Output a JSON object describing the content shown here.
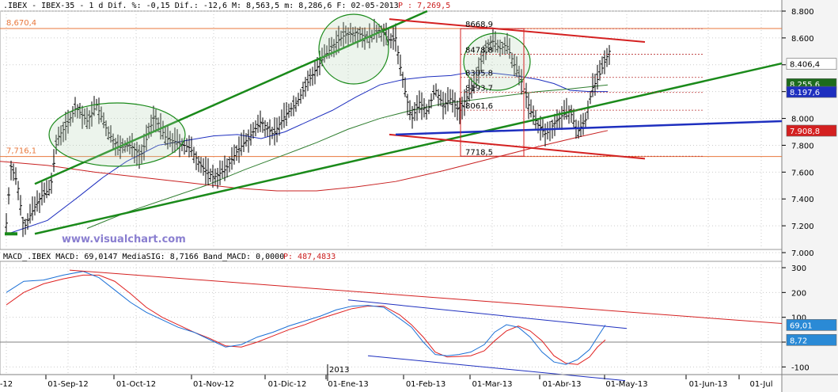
{
  "chart_data": [
    {
      "type": "ohlc",
      "header": {
        "label": ".IBEX - IBEX-35 - 1 d Dif. %: -0,15 Dif.: -12,6 M: 8,563,5 m: 8,286,6 F: 02-05-2013",
        "p_label": "P : 7,269,5"
      },
      "watermark": "www.visualchart.com",
      "y_axis": {
        "min": 7000,
        "max": 8800,
        "ticks": [
          "8.800",
          "8.600",
          "8.400",
          "8.200",
          "8.000",
          "7.800",
          "7.600",
          "7.400",
          "7.200",
          "7.000"
        ]
      },
      "x_axis": {
        "ticks": [
          "-12",
          "01-Sep-12",
          "01-Oct-12",
          "01-Nov-12",
          "01-Dic-12",
          "01-Ene-13",
          "01-Feb-13",
          "01-Mar-13",
          "01-Abr-13",
          "01-May-13",
          "01-Jun-13",
          "01-Jul"
        ],
        "year_marker": "2013"
      },
      "horizontal_levels": [
        {
          "label": "8,670,4",
          "value": 8670.4,
          "color": "#e8773b"
        },
        {
          "label": "7,716,1",
          "value": 7716.1,
          "color": "#e8773b"
        }
      ],
      "level_labels": [
        {
          "label": "8668,9",
          "value": 8668.9
        },
        {
          "label": "8478,8",
          "value": 8478.8
        },
        {
          "label": "8305,8",
          "value": 8305.8
        },
        {
          "label": "8193,7",
          "value": 8193.7
        },
        {
          "label": "8061,6",
          "value": 8061.6
        },
        {
          "label": "7718,5",
          "value": 7718.5
        }
      ],
      "price_tags": [
        {
          "label": "8.406,4",
          "value": 8406.4,
          "bg": "#ffffff",
          "fg": "#000000"
        },
        {
          "label": "8.255,6",
          "value": 8255.6,
          "bg": "#1d6b1d",
          "fg": "#ffffff"
        },
        {
          "label": "8.197,6",
          "value": 8197.6,
          "bg": "#1e2fbf",
          "fg": "#ffffff"
        },
        {
          "label": "7.908,8",
          "value": 7908.8,
          "bg": "#d42020",
          "fg": "#ffffff"
        }
      ],
      "series": [
        {
          "name": "Price",
          "color": "#000000"
        },
        {
          "name": "MA blue",
          "color": "#1e2fbf"
        },
        {
          "name": "MA green",
          "color": "#2e7d2e"
        },
        {
          "name": "MA red",
          "color": "#c82020"
        }
      ]
    },
    {
      "type": "line",
      "header": {
        "label": "MACD_.IBEX MACD: 69,0147 MediaSIG: 8,7166 Band_MACD: 0,0000",
        "p_label": "P: 487,4833"
      },
      "y_axis": {
        "min": -150,
        "max": 300,
        "ticks": [
          "300",
          "200",
          "100",
          "0",
          "-100"
        ]
      },
      "price_tags": [
        {
          "label": "69,01",
          "value": 69.01,
          "bg": "#2a8ad6",
          "fg": "#ffffff"
        },
        {
          "label": "8,72",
          "value": 8.72,
          "bg": "#2a8ad6",
          "fg": "#ffffff"
        }
      ],
      "series": [
        {
          "name": "MACD",
          "color": "#1a6fd6"
        },
        {
          "name": "MediaSIG",
          "color": "#e02020"
        }
      ]
    }
  ],
  "colors": {
    "grid": "#cccccc",
    "axis_text": "#000000",
    "channel_green": "#1a8a1a",
    "channel_red": "#d42020",
    "trend_blue": "#1e2fbf",
    "watermark": "#8a7fd0",
    "header_red": "#cc2020"
  }
}
